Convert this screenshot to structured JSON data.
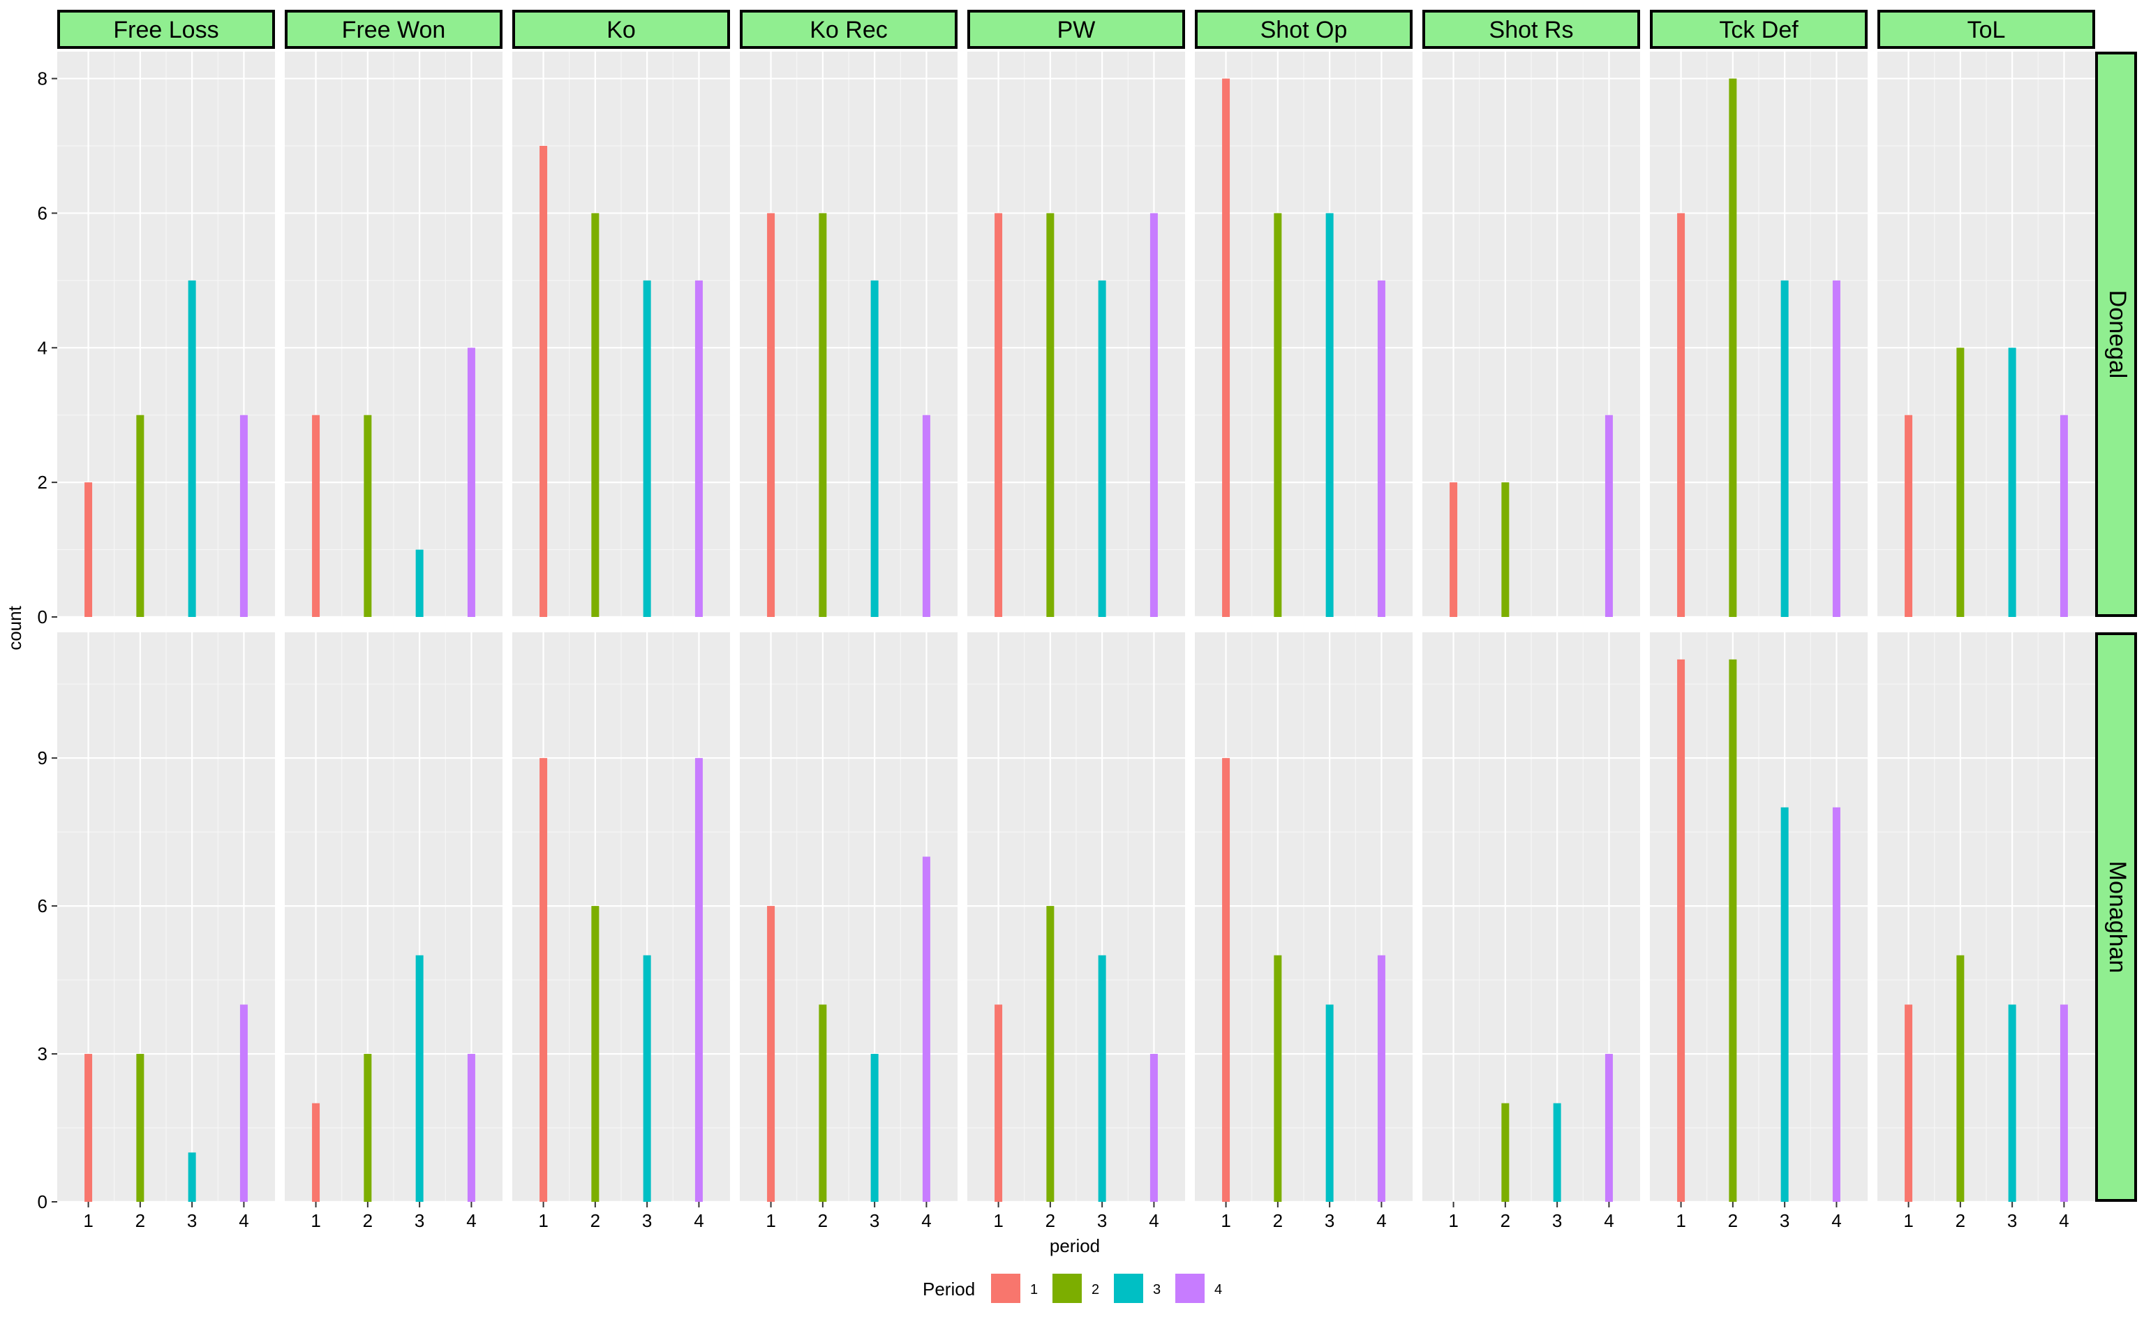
{
  "chart_data": {
    "type": "bar",
    "xlabel": "period",
    "ylabel": "count",
    "legend": {
      "title": "Period",
      "position": "bottom",
      "entries": [
        "1",
        "2",
        "3",
        "4"
      ]
    },
    "colors": {
      "1": "#F8766D",
      "2": "#7CAE00",
      "3": "#00BFC4",
      "4": "#C77CFF"
    },
    "strip_color": "#90EE90",
    "panel_bg": "#EBEBEB",
    "grid": true,
    "x_ticks": [
      "1",
      "2",
      "3",
      "4"
    ],
    "columns": [
      "Free Loss",
      "Free Won",
      "Ko",
      "Ko Rec",
      "PW",
      "Shot Op",
      "Shot Rs",
      "Tck Def",
      "ToL"
    ],
    "rows": [
      {
        "name": "Donegal",
        "ylim": [
          0,
          8.4
        ],
        "y_ticks": [
          0,
          2,
          4,
          6,
          8
        ],
        "values": {
          "Free Loss": [
            2,
            3,
            5,
            3
          ],
          "Free Won": [
            3,
            3,
            1,
            4
          ],
          "Ko": [
            7,
            6,
            5,
            5
          ],
          "Ko Rec": [
            6,
            6,
            5,
            3
          ],
          "PW": [
            6,
            6,
            5,
            6
          ],
          "Shot Op": [
            8,
            6,
            6,
            5
          ],
          "Shot Rs": [
            2,
            2,
            0,
            3
          ],
          "Tck Def": [
            6,
            8,
            5,
            5
          ],
          "ToL": [
            3,
            4,
            4,
            3
          ]
        }
      },
      {
        "name": "Monaghan",
        "ylim": [
          0,
          11.55
        ],
        "y_ticks": [
          0,
          3,
          6,
          9
        ],
        "values": {
          "Free Loss": [
            3,
            3,
            1,
            4
          ],
          "Free Won": [
            2,
            3,
            5,
            3
          ],
          "Ko": [
            9,
            6,
            5,
            9
          ],
          "Ko Rec": [
            6,
            4,
            3,
            7
          ],
          "PW": [
            4,
            6,
            5,
            3
          ],
          "Shot Op": [
            9,
            5,
            4,
            5
          ],
          "Shot Rs": [
            0,
            2,
            2,
            3
          ],
          "Tck Def": [
            11,
            11,
            8,
            8
          ],
          "ToL": [
            4,
            5,
            4,
            4
          ]
        }
      }
    ]
  }
}
